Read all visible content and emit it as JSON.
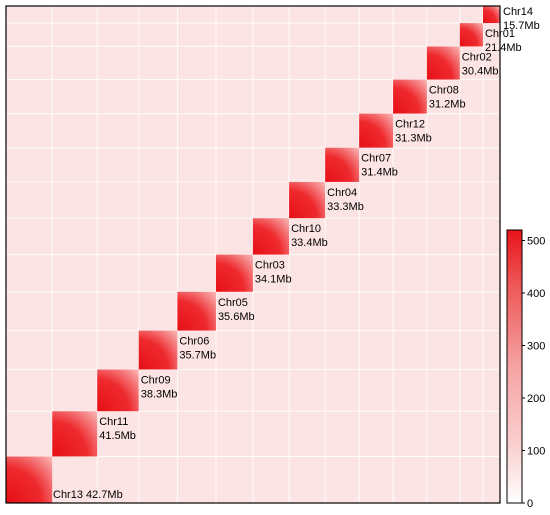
{
  "chart_data": {
    "type": "heatmap",
    "chromosomes": [
      {
        "name": "Chr13",
        "length_label": "42.7Mb",
        "length_mb": 42.7
      },
      {
        "name": "Chr11",
        "length_label": "41.5Mb",
        "length_mb": 41.5
      },
      {
        "name": "Chr09",
        "length_label": "38.3Mb",
        "length_mb": 38.3
      },
      {
        "name": "Chr06",
        "length_label": "35.7Mb",
        "length_mb": 35.7
      },
      {
        "name": "Chr05",
        "length_label": "35.6Mb",
        "length_mb": 35.6
      },
      {
        "name": "Chr03",
        "length_label": "34.1Mb",
        "length_mb": 34.1
      },
      {
        "name": "Chr10",
        "length_label": "33.4Mb",
        "length_mb": 33.4
      },
      {
        "name": "Chr04",
        "length_label": "33.3Mb",
        "length_mb": 33.3
      },
      {
        "name": "Chr07",
        "length_label": "31.4Mb",
        "length_mb": 31.4
      },
      {
        "name": "Chr12",
        "length_label": "31.3Mb",
        "length_mb": 31.3
      },
      {
        "name": "Chr08",
        "length_label": "31.2Mb",
        "length_mb": 31.2
      },
      {
        "name": "Chr02",
        "length_label": "30.4Mb",
        "length_mb": 30.4
      },
      {
        "name": "Chr01",
        "length_label": "21.4Mb",
        "length_mb": 21.4
      },
      {
        "name": "Chr14",
        "length_label": "15.7Mb",
        "length_mb": 15.7
      }
    ],
    "colorbar": {
      "min": 0,
      "max": 520,
      "ticks": [
        0,
        100,
        200,
        300,
        400,
        500
      ],
      "low_color": "#ffffff",
      "high_color": "#e8141c"
    },
    "background_color": "#fde4e4",
    "grid_line_color": "#ffffff"
  }
}
